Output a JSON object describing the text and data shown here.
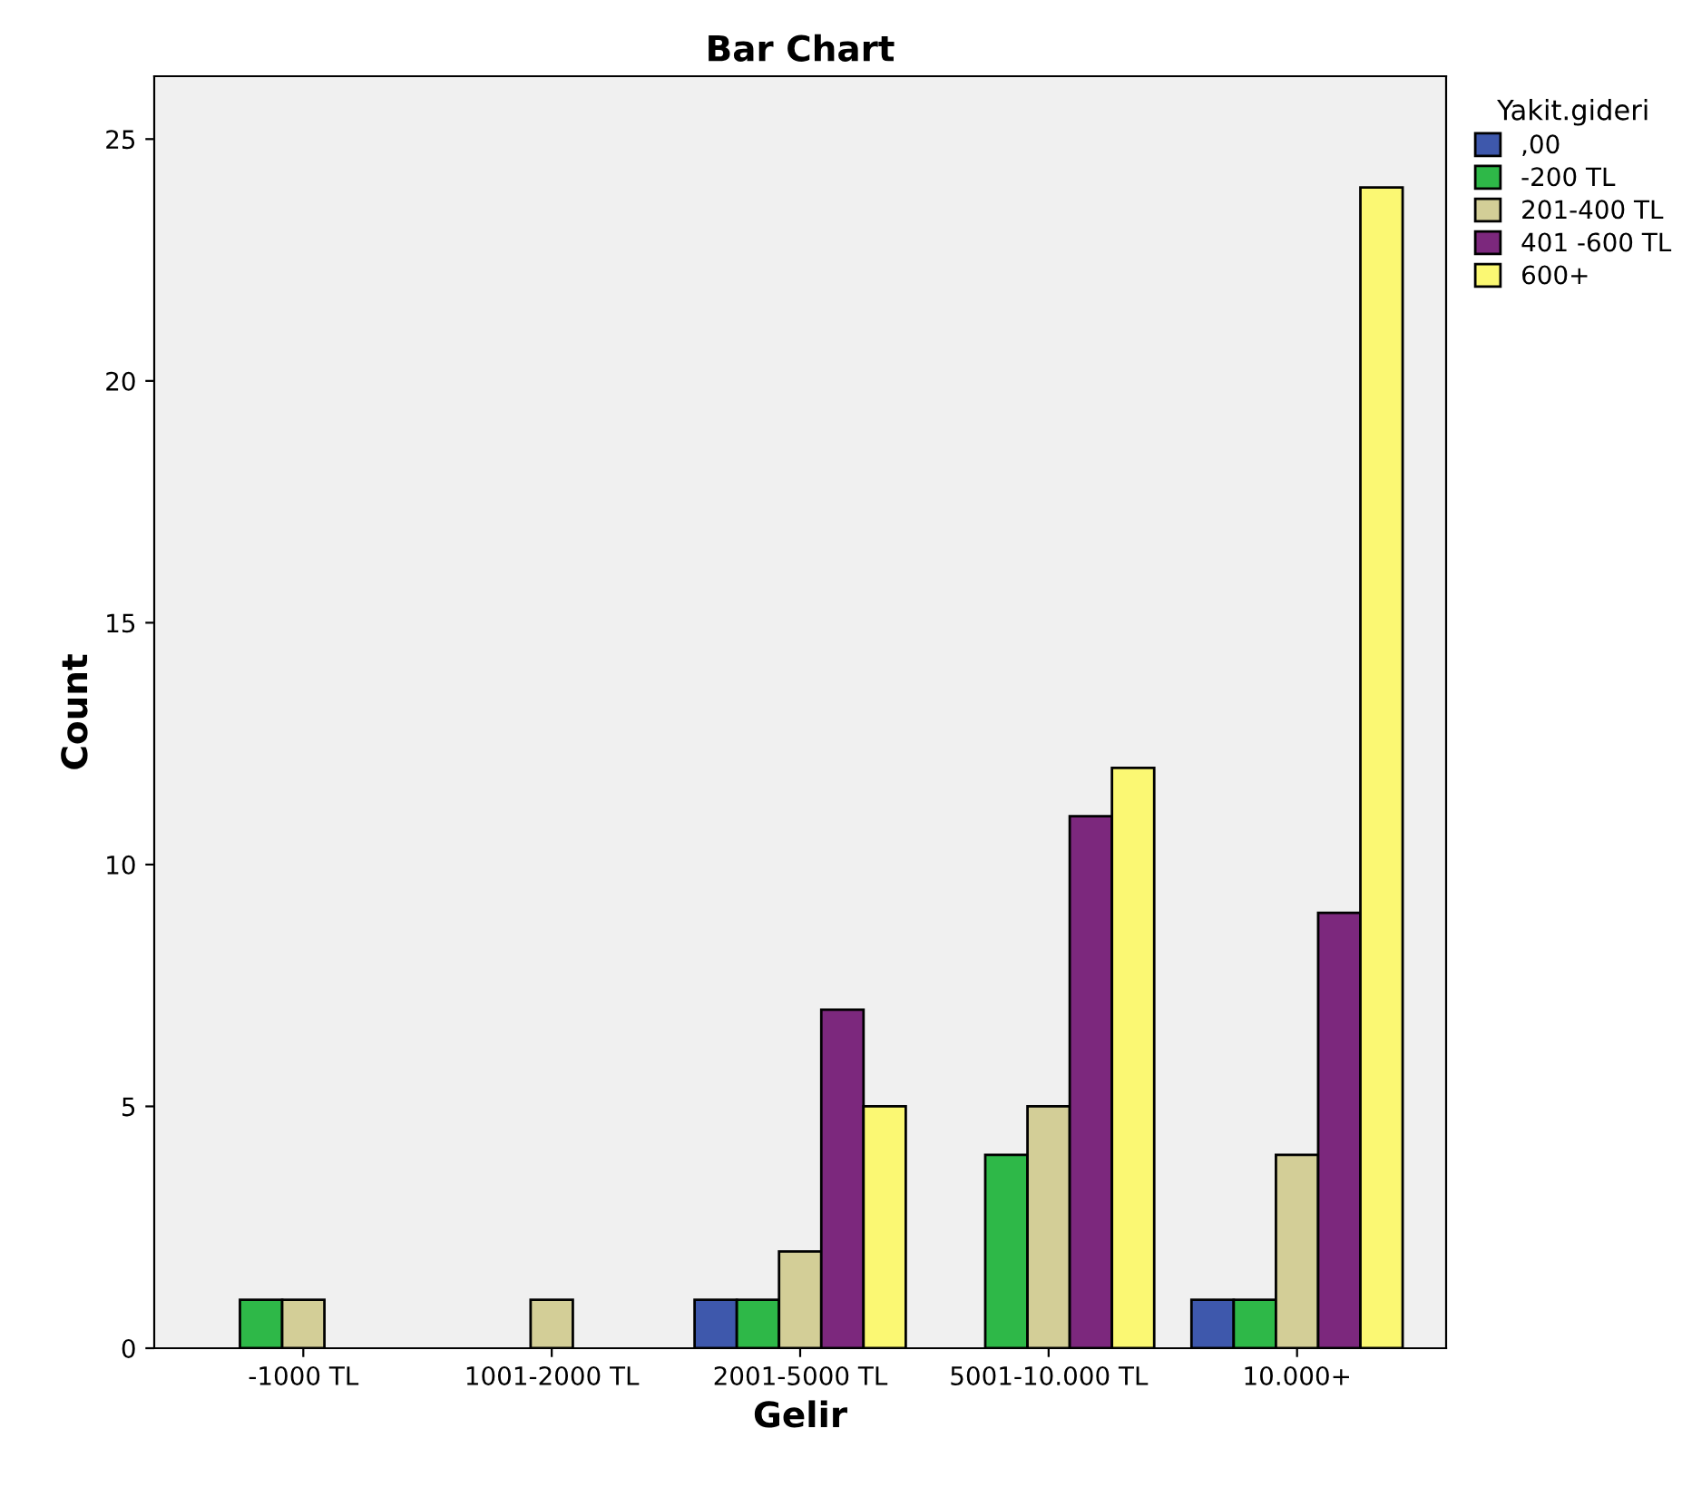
{
  "chart_data": {
    "type": "bar",
    "title": "Bar Chart",
    "xlabel": "Gelir",
    "ylabel": "Count",
    "legend_title": "Yakit.gideri",
    "categories": [
      "-1000 TL",
      "1001-2000 TL",
      "2001-5000 TL",
      "5001-10.000 TL",
      "10.000+"
    ],
    "series": [
      {
        "name": ",00",
        "color": "#3e58ac",
        "values": [
          null,
          null,
          1,
          null,
          1
        ]
      },
      {
        "name": "-200 TL",
        "color": "#2eb848",
        "values": [
          1,
          null,
          1,
          4,
          1
        ]
      },
      {
        "name": "201-400 TL",
        "color": "#d3ce97",
        "values": [
          1,
          1,
          2,
          5,
          4
        ]
      },
      {
        "name": "401 -600 TL",
        "color": "#7c287d",
        "values": [
          null,
          null,
          7,
          11,
          9
        ]
      },
      {
        "name": "600+",
        "color": "#fbf873",
        "values": [
          null,
          null,
          5,
          12,
          24
        ]
      }
    ],
    "ylim": [
      0,
      26.3
    ],
    "yticks": [
      0,
      5,
      10,
      15,
      20,
      25
    ],
    "grid": false,
    "legend": "top right"
  }
}
